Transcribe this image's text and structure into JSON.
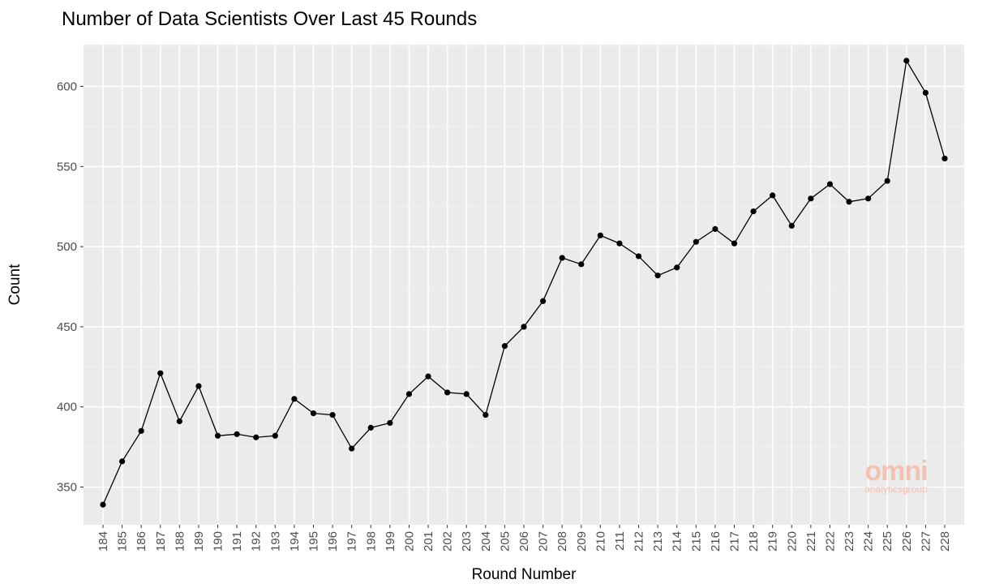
{
  "chart_data": {
    "type": "line",
    "title": "Number of Data Scientists Over Last 45 Rounds",
    "xlabel": "Round Number",
    "ylabel": "Count",
    "ylim": [
      325,
      625
    ],
    "yticks": [
      350,
      400,
      450,
      500,
      550,
      600
    ],
    "grid": true,
    "legend": "none",
    "x": [
      184,
      185,
      186,
      187,
      188,
      189,
      190,
      191,
      192,
      193,
      194,
      195,
      196,
      197,
      198,
      199,
      200,
      201,
      202,
      203,
      204,
      205,
      206,
      207,
      208,
      209,
      210,
      211,
      212,
      213,
      214,
      215,
      216,
      217,
      218,
      219,
      220,
      221,
      222,
      223,
      224,
      225,
      226,
      227,
      228
    ],
    "series": [
      {
        "values": [
          339,
          366,
          385,
          421,
          391,
          413,
          382,
          383,
          381,
          382,
          405,
          396,
          395,
          374,
          387,
          390,
          408,
          419,
          409,
          408,
          395,
          438,
          450,
          466,
          493,
          489,
          507,
          502,
          494,
          482,
          487,
          503,
          511,
          502,
          522,
          532,
          513,
          530,
          539,
          528,
          530,
          541,
          616,
          596,
          555
        ]
      }
    ]
  },
  "watermark": {
    "logo_text": "omni",
    "sub_text": "analyticsgroup"
  },
  "colors": {
    "panel": "#ebebeb",
    "grid_major": "#ffffff",
    "line": "#000000",
    "watermark": "#f2c1b0"
  }
}
